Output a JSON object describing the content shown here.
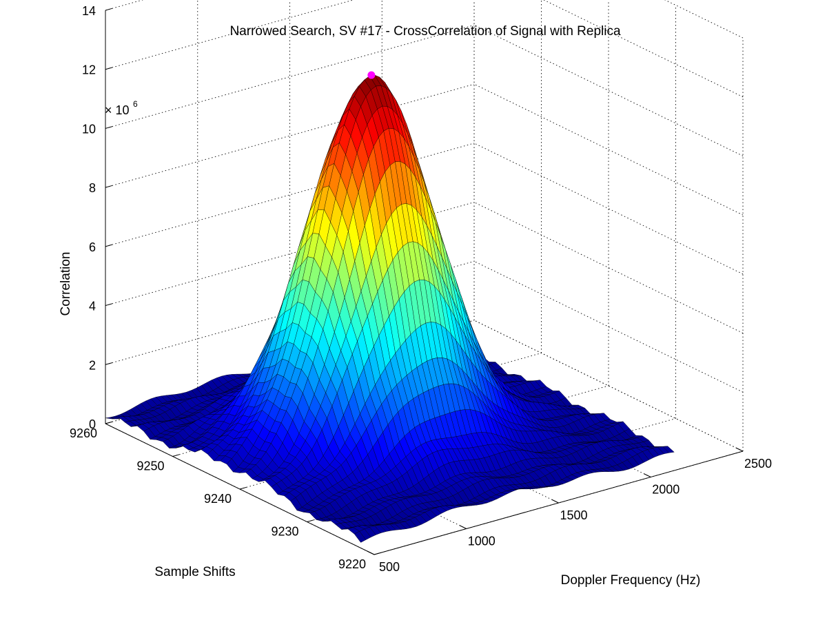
{
  "chart_data": {
    "type": "surface",
    "title": "Narrowed Search, SV #17 - CrossCorrelation of Signal with Replica",
    "xlabel": "Doppler Frequency (Hz)",
    "ylabel": "Sample Shifts",
    "zlabel": "Correlation",
    "z_exponent_label": "× 10",
    "z_exponent_power": "6",
    "x_ticks": [
      "500",
      "1000",
      "1500",
      "2000",
      "2500"
    ],
    "y_ticks": [
      "9220",
      "9230",
      "9240",
      "9250",
      "9260"
    ],
    "z_ticks": [
      "0",
      "2",
      "4",
      "6",
      "8",
      "10",
      "12",
      "14"
    ],
    "xlim": [
      500,
      2500
    ],
    "ylim": [
      9220,
      9260
    ],
    "zlim": [
      0,
      14000000
    ],
    "surface": {
      "x_range": [
        500,
        2200
      ],
      "y_range": [
        9222,
        9260
      ],
      "peak": {
        "doppler_hz": 1250,
        "sample_shift": 9241,
        "correlation": 12600000
      },
      "sigma_doppler_hz": 280,
      "sigma_sample_shifts": 5.5,
      "baseline": 300000
    },
    "peak_marker": {
      "doppler_hz": 1250,
      "sample_shift": 9241,
      "correlation": 12600000,
      "color": "#ff00ff"
    },
    "colormap": "jet",
    "grid": true
  }
}
